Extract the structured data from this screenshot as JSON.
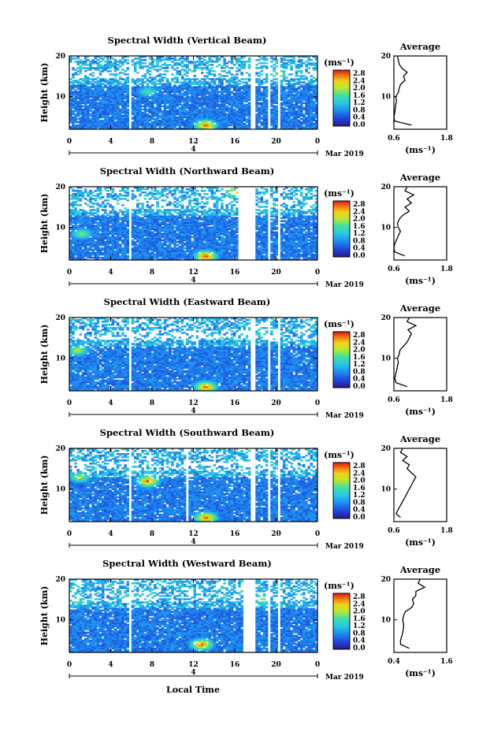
{
  "figure": {
    "date_label": "Mar 2019",
    "day_label": "4",
    "x_axis_title": "Local Time",
    "y_axis_title": "Height (km)",
    "avg_title": "Average",
    "colorbar_unit": "(ms⁻¹)",
    "avg_xlabel": "(ms⁻¹)"
  },
  "chart_data": [
    {
      "type": "heatmap",
      "title": "Spectral Width (Vertical Beam)",
      "xlabel": "",
      "ylabel": "Height (km)",
      "xlim": [
        0,
        24
      ],
      "ylim": [
        2,
        20
      ],
      "x_ticks": [
        "0",
        "4",
        "8",
        "12",
        "16",
        "20",
        "0"
      ],
      "y_ticks": [
        "10",
        "20"
      ],
      "colorbar": {
        "label": "(ms⁻¹)",
        "range": [
          0,
          2.8
        ],
        "ticks": [
          "0.0",
          "0.4",
          "0.8",
          "1.2",
          "1.6",
          "2.0",
          "2.4",
          "2.8"
        ]
      },
      "gaps_hours": [
        [
          5.8,
          6.1
        ],
        [
          17.6,
          18.1
        ],
        [
          19.2,
          19.5
        ],
        [
          20.2,
          20.5
        ]
      ],
      "enhancements": [
        {
          "t": 13.2,
          "h": 3.0,
          "level": 2.7
        },
        {
          "t": 7.6,
          "h": 11.3,
          "level": 1.6
        },
        {
          "t": 20.3,
          "h": 15.5,
          "level": 2.0
        }
      ],
      "average_profile": {
        "xlim": [
          0.6,
          1.8
        ],
        "x_ticks": [
          "0.6",
          "1.8"
        ],
        "y_ticks": [
          "10",
          "20"
        ],
        "height": [
          3,
          4,
          5,
          6,
          7,
          8,
          9,
          10,
          11,
          12,
          13,
          14,
          15,
          16,
          17,
          18,
          19,
          20
        ],
        "value": [
          1.0,
          0.62,
          0.6,
          0.62,
          0.63,
          0.64,
          0.66,
          0.64,
          0.7,
          0.72,
          0.75,
          0.85,
          0.82,
          0.9,
          0.78,
          0.72,
          0.7,
          0.68
        ]
      }
    },
    {
      "type": "heatmap",
      "title": "Spectral Width (Northward Beam)",
      "xlabel": "",
      "ylabel": "Height (km)",
      "xlim": [
        0,
        24
      ],
      "ylim": [
        2,
        20
      ],
      "x_ticks": [
        "0",
        "4",
        "8",
        "12",
        "16",
        "20",
        "0"
      ],
      "y_ticks": [
        "10",
        "20"
      ],
      "colorbar": {
        "label": "(ms⁻¹)",
        "range": [
          0,
          2.8
        ],
        "ticks": [
          "0.0",
          "0.4",
          "0.8",
          "1.2",
          "1.6",
          "2.0",
          "2.4",
          "2.8"
        ]
      },
      "gaps_hours": [
        [
          5.8,
          6.1
        ],
        [
          16.3,
          18.1
        ],
        [
          19.2,
          19.5
        ],
        [
          20.2,
          20.5
        ]
      ],
      "enhancements": [
        {
          "t": 13.2,
          "h": 3.0,
          "level": 2.8
        },
        {
          "t": 16.0,
          "h": 18.7,
          "level": 2.3
        },
        {
          "t": 1.2,
          "h": 8.5,
          "level": 1.8
        }
      ],
      "average_profile": {
        "xlim": [
          0.6,
          1.8
        ],
        "x_ticks": [
          "0.6",
          "1.8"
        ],
        "y_ticks": [
          "10",
          "20"
        ],
        "height": [
          3,
          4,
          5,
          6,
          7,
          8,
          9,
          10,
          11,
          12,
          13,
          14,
          15,
          16,
          17,
          18,
          19,
          20
        ],
        "value": [
          0.85,
          0.62,
          0.6,
          0.62,
          0.66,
          0.7,
          0.75,
          0.7,
          0.68,
          0.72,
          0.8,
          0.95,
          0.85,
          1.0,
          0.9,
          1.05,
          0.85,
          0.9
        ]
      }
    },
    {
      "type": "heatmap",
      "title": "Spectral Width (Eastward Beam)",
      "xlabel": "",
      "ylabel": "Height (km)",
      "xlim": [
        0,
        24
      ],
      "ylim": [
        2,
        20
      ],
      "x_ticks": [
        "0",
        "4",
        "8",
        "12",
        "16",
        "20",
        "0"
      ],
      "y_ticks": [
        "10",
        "20"
      ],
      "colorbar": {
        "label": "(ms⁻¹)",
        "range": [
          0,
          2.8
        ],
        "ticks": [
          "0.0",
          "0.4",
          "0.8",
          "1.2",
          "1.6",
          "2.0",
          "2.4",
          "2.8"
        ]
      },
      "gaps_hours": [
        [
          5.8,
          6.1
        ],
        [
          17.6,
          18.1
        ],
        [
          19.2,
          19.5
        ],
        [
          20.2,
          20.5
        ]
      ],
      "enhancements": [
        {
          "t": 13.2,
          "h": 3.0,
          "level": 2.7
        },
        {
          "t": 0.8,
          "h": 12.0,
          "level": 2.0
        },
        {
          "t": 18.6,
          "h": 16.0,
          "level": 1.6
        }
      ],
      "average_profile": {
        "xlim": [
          0.6,
          1.8
        ],
        "x_ticks": [
          "0.6",
          "1.8"
        ],
        "y_ticks": [
          "10",
          "20"
        ],
        "height": [
          3,
          4,
          5,
          6,
          7,
          8,
          9,
          10,
          11,
          12,
          13,
          14,
          15,
          16,
          17,
          18,
          19,
          20
        ],
        "value": [
          0.9,
          0.65,
          0.62,
          0.64,
          0.66,
          0.68,
          0.7,
          0.68,
          0.72,
          0.74,
          0.82,
          0.9,
          0.95,
          1.0,
          0.92,
          1.1,
          0.9,
          0.95
        ]
      }
    },
    {
      "type": "heatmap",
      "title": "Spectral Width (Southward Beam)",
      "xlabel": "",
      "ylabel": "Height (km)",
      "xlim": [
        0,
        24
      ],
      "ylim": [
        2,
        20
      ],
      "x_ticks": [
        "0",
        "4",
        "8",
        "12",
        "16",
        "20",
        "0"
      ],
      "y_ticks": [
        "10",
        "20"
      ],
      "colorbar": {
        "label": "(ms⁻¹)",
        "range": [
          0,
          2.8
        ],
        "ticks": [
          "0.0",
          "0.4",
          "0.8",
          "1.2",
          "1.6",
          "2.0",
          "2.4",
          "2.8"
        ]
      },
      "gaps_hours": [
        [
          5.8,
          6.1
        ],
        [
          11.3,
          11.5
        ],
        [
          17.6,
          18.1
        ],
        [
          19.2,
          19.5
        ],
        [
          20.2,
          20.5
        ]
      ],
      "enhancements": [
        {
          "t": 13.2,
          "h": 3.0,
          "level": 2.7
        },
        {
          "t": 7.6,
          "h": 12.0,
          "level": 2.7
        },
        {
          "t": 1.0,
          "h": 13.0,
          "level": 2.0
        }
      ],
      "average_profile": {
        "xlim": [
          0.6,
          1.8
        ],
        "x_ticks": [
          "0.6",
          "1.8"
        ],
        "y_ticks": [
          "10",
          "20"
        ],
        "height": [
          3,
          4,
          5,
          6,
          7,
          8,
          9,
          10,
          11,
          12,
          13,
          14,
          15,
          16,
          17,
          18,
          19,
          20
        ],
        "value": [
          0.75,
          0.65,
          0.7,
          0.75,
          0.8,
          0.85,
          0.9,
          0.95,
          1.0,
          1.05,
          1.1,
          1.0,
          0.9,
          0.95,
          0.8,
          0.9,
          0.75,
          0.8
        ]
      }
    },
    {
      "type": "heatmap",
      "title": "Spectral Width (Westward Beam)",
      "xlabel": "Local Time",
      "ylabel": "Height (km)",
      "xlim": [
        0,
        24
      ],
      "ylim": [
        2,
        20
      ],
      "x_ticks": [
        "0",
        "4",
        "8",
        "12",
        "16",
        "20",
        "0"
      ],
      "y_ticks": [
        "10",
        "20"
      ],
      "colorbar": {
        "label": "(ms⁻¹)",
        "range": [
          0,
          2.8
        ],
        "ticks": [
          "0.0",
          "0.4",
          "0.8",
          "1.2",
          "1.6",
          "2.0",
          "2.4",
          "2.8"
        ]
      },
      "gaps_hours": [
        [
          5.8,
          6.1
        ],
        [
          16.8,
          18.1
        ],
        [
          19.2,
          19.5
        ],
        [
          20.2,
          20.5
        ]
      ],
      "enhancements": [
        {
          "t": 12.8,
          "h": 4.0,
          "level": 2.7
        },
        {
          "t": 18.6,
          "h": 15.0,
          "level": 1.8
        },
        {
          "t": 0.8,
          "h": 14.5,
          "level": 1.6
        }
      ],
      "average_profile": {
        "xlim": [
          0.4,
          1.6
        ],
        "x_ticks": [
          "0.4",
          "1.6"
        ],
        "y_ticks": [
          "10",
          "20"
        ],
        "height": [
          3,
          4,
          5,
          6,
          7,
          8,
          9,
          10,
          11,
          12,
          13,
          14,
          15,
          16,
          17,
          18,
          19,
          20
        ],
        "value": [
          0.75,
          0.55,
          0.55,
          0.58,
          0.6,
          0.62,
          0.62,
          0.6,
          0.62,
          0.66,
          0.8,
          0.85,
          0.82,
          0.9,
          0.9,
          1.1,
          0.95,
          1.0
        ]
      }
    }
  ]
}
